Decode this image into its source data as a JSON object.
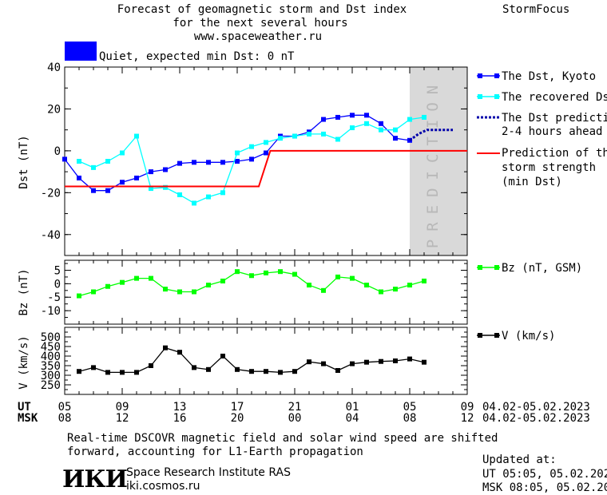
{
  "header": {
    "title_lines": [
      "Forecast of geomagnetic storm and Dst index",
      "for the next several hours",
      "www.spaceweather.ru"
    ],
    "brand": "StormFocus"
  },
  "status": {
    "label": "Quiet, expected min Dst: 0 nT",
    "color": "#0000ff"
  },
  "prediction_label": "PREDICTION",
  "legend": {
    "dst_kyoto": "The Dst, Kyoto",
    "recovered": "The recovered Dst",
    "prediction": [
      "The Dst prediction",
      "2-4 hours ahead"
    ],
    "storm": [
      "Prediction of the",
      "storm strength",
      "(min Dst)"
    ],
    "bz": "Bz (nT, GSM)",
    "v": "V (km/s)"
  },
  "time_axis": {
    "ut_label": "UT",
    "msk_label": "MSK",
    "ut_ticks": [
      "05",
      "09",
      "13",
      "17",
      "21",
      "01",
      "05",
      "09"
    ],
    "msk_ticks": [
      "08",
      "12",
      "16",
      "20",
      "00",
      "04",
      "08",
      "12"
    ],
    "ut_range": "04.02-05.02.2023",
    "msk_range": "04.02-05.02.2023"
  },
  "footer": {
    "note_lines": [
      "Real-time DSCOVR magnetic field and solar wind speed are shifted",
      "forward, accounting for L1-Earth propagation"
    ],
    "logo_text": "ИКИ",
    "institute": "Space Research Institute RAS",
    "site": "iki.cosmos.ru",
    "updated_label": "Updated at:",
    "updated_ut": "UT   05:05, 05.02.2023",
    "updated_msk": "MSK 08:05, 05.02.2023"
  },
  "chart_data": [
    {
      "type": "line",
      "ylabel": "Dst (nT)",
      "ylim": [
        -50,
        40
      ],
      "yticks": [
        40,
        20,
        0,
        -20,
        -40
      ],
      "x_unit": "hours UT from 04.02 05:00",
      "xlim": [
        0,
        28
      ],
      "prediction_region_x": [
        24,
        28
      ],
      "series": [
        {
          "name": "The Dst, Kyoto",
          "color": "#0000ff",
          "x": [
            0,
            1,
            2,
            3,
            4,
            5,
            6,
            7,
            8,
            9,
            10,
            11,
            12,
            13,
            14,
            15,
            16,
            17,
            18,
            19,
            20,
            21,
            22,
            23,
            24
          ],
          "y": [
            -4,
            -13,
            -19,
            -19,
            -15,
            -13,
            -10,
            -9,
            -6,
            -5.5,
            -5.5,
            -5.5,
            -5,
            -4,
            -1,
            7,
            7,
            9,
            15,
            16,
            17,
            17,
            13,
            6,
            5
          ]
        },
        {
          "name": "The recovered Dst",
          "color": "#00ffff",
          "x": [
            1,
            2,
            3,
            4,
            5,
            6,
            7,
            8,
            9,
            10,
            11,
            12,
            13,
            14,
            15,
            16,
            17,
            18,
            19,
            20,
            21,
            22,
            23,
            24,
            25
          ],
          "y": [
            -5,
            -8,
            -5,
            -1,
            7,
            -18,
            -17.5,
            -21,
            -25,
            -22,
            -20,
            -1,
            2,
            4,
            6,
            7,
            8,
            8,
            5.5,
            11,
            13,
            10,
            10,
            15,
            16
          ]
        },
        {
          "name": "The Dst prediction 2-4 hours ahead",
          "color": "#0000aa",
          "x": [
            24,
            24.6,
            25.2,
            26.1,
            27.0
          ],
          "y": [
            5,
            8,
            10,
            10,
            10
          ]
        },
        {
          "name": "Prediction of the storm strength (min Dst)",
          "color": "#ff0000",
          "x": [
            0,
            13.5,
            14.3,
            28
          ],
          "y": [
            -17,
            -17,
            0,
            0
          ]
        }
      ]
    },
    {
      "type": "line",
      "ylabel": "Bz (nT)",
      "ylim": [
        -15,
        8.7
      ],
      "yticks": [
        5,
        0,
        -5,
        -10
      ],
      "series": [
        {
          "name": "Bz (nT, GSM)",
          "color": "#00ff00",
          "x": [
            1,
            2,
            3,
            4,
            5,
            6,
            7,
            8,
            9,
            10,
            11,
            12,
            13,
            14,
            15,
            16,
            17,
            18,
            19,
            20,
            21,
            22,
            23,
            24,
            25
          ],
          "y": [
            -4.5,
            -3,
            -1,
            0.5,
            2,
            2,
            -2,
            -3,
            -3,
            -0.5,
            1,
            4.5,
            3,
            4,
            4.5,
            3.5,
            -0.5,
            -2.5,
            2.5,
            2,
            -0.5,
            -3,
            -2,
            -0.5,
            1
          ]
        }
      ]
    },
    {
      "type": "line",
      "ylabel": "V (km/s)",
      "ylim": [
        200,
        550
      ],
      "yticks": [
        500,
        450,
        400,
        350,
        300,
        250
      ],
      "series": [
        {
          "name": "V (km/s)",
          "color": "#000000",
          "x": [
            1,
            2,
            3,
            4,
            5,
            6,
            7,
            8,
            9,
            10,
            11,
            12,
            13,
            14,
            15,
            16,
            17,
            18,
            19,
            20,
            21,
            22,
            23,
            24,
            25
          ],
          "y": [
            320,
            340,
            315,
            315,
            315,
            350,
            443,
            420,
            340,
            330,
            400,
            330,
            320,
            320,
            315,
            320,
            370,
            360,
            325,
            360,
            368,
            372,
            375,
            385,
            368
          ]
        }
      ]
    }
  ]
}
